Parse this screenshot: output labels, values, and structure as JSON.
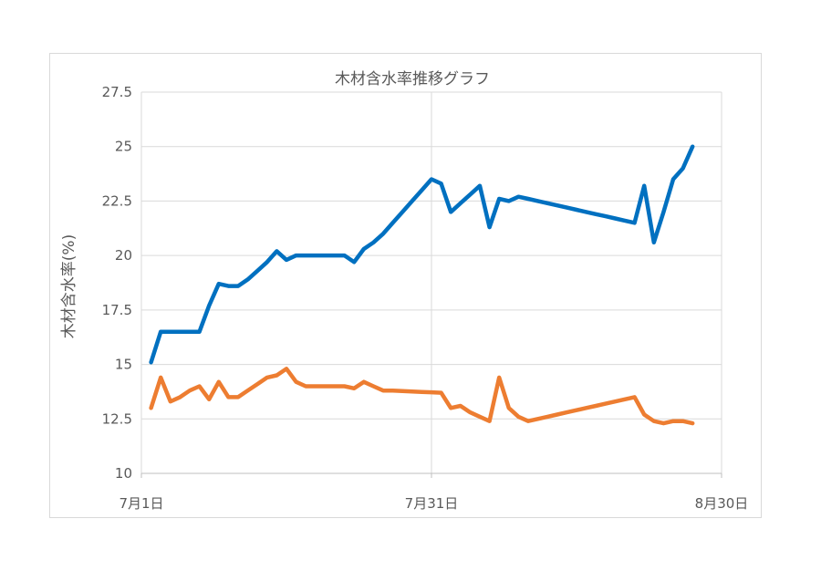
{
  "chart_data": {
    "type": "line",
    "title": "木材含水率推移グラフ",
    "xlabel": "",
    "ylabel": "木材含水率(%)",
    "ylim": [
      10,
      27.5
    ],
    "yticks": [
      10,
      12.5,
      15,
      17.5,
      20,
      22.5,
      25,
      27.5
    ],
    "ytick_labels": [
      "10",
      "12.5",
      "15",
      "17.5",
      "20",
      "22.5",
      "25",
      "27.5"
    ],
    "xlim": [
      0,
      60
    ],
    "xticks": [
      0,
      30,
      60
    ],
    "xtick_labels": [
      "7月1日",
      "7月31日",
      "8月30日"
    ],
    "grid": true,
    "legend": "none",
    "series": [
      {
        "color": "#0070C0",
        "x": [
          1,
          2,
          3,
          4,
          5,
          6,
          7,
          8,
          9,
          10,
          11,
          12,
          13,
          14,
          15,
          16,
          17,
          18,
          19,
          20,
          21,
          22,
          23,
          24,
          25,
          26,
          27,
          28,
          29,
          30,
          31,
          32,
          33,
          34,
          35,
          36,
          37,
          38,
          39,
          40,
          41,
          42,
          43,
          44,
          45,
          46,
          47,
          48,
          49,
          50,
          51,
          52,
          53,
          54,
          55,
          56,
          57
        ],
        "values": [
          15.1,
          16.5,
          16.5,
          16.5,
          16.5,
          16.5,
          17.7,
          18.7,
          18.6,
          18.6,
          18.9,
          19.3,
          19.7,
          20.2,
          19.8,
          20.0,
          20.0,
          20.0,
          20.0,
          20.0,
          20.0,
          19.7,
          20.3,
          20.6,
          21.0,
          21.5,
          22.0,
          22.5,
          23.0,
          23.5,
          23.3,
          22.0,
          22.4,
          22.8,
          23.2,
          21.3,
          22.6,
          22.5,
          22.7,
          22.6,
          22.5,
          22.4,
          22.3,
          22.2,
          22.1,
          22.0,
          21.9,
          21.8,
          21.7,
          21.6,
          21.5,
          23.2,
          20.6,
          22.0,
          23.5,
          24.0,
          25.0
        ]
      },
      {
        "color": "#ED7D31",
        "x": [
          1,
          2,
          3,
          4,
          5,
          6,
          7,
          8,
          9,
          10,
          11,
          12,
          13,
          14,
          15,
          16,
          17,
          18,
          19,
          20,
          21,
          22,
          23,
          24,
          25,
          26,
          27,
          28,
          29,
          30,
          31,
          32,
          33,
          34,
          35,
          36,
          37,
          38,
          39,
          40,
          41,
          42,
          43,
          44,
          45,
          46,
          47,
          48,
          49,
          50,
          51,
          52,
          53,
          54,
          55,
          56,
          57
        ],
        "values": [
          13.0,
          14.4,
          13.3,
          13.5,
          13.8,
          14.0,
          13.4,
          14.2,
          13.5,
          13.5,
          13.8,
          14.1,
          14.4,
          14.5,
          14.8,
          14.2,
          14.0,
          14.0,
          14.0,
          14.0,
          14.0,
          13.9,
          14.2,
          14.0,
          13.8,
          13.8,
          13.78,
          13.76,
          13.74,
          13.72,
          13.7,
          13.0,
          13.1,
          12.8,
          12.6,
          12.4,
          14.4,
          13.0,
          12.6,
          12.4,
          12.5,
          12.6,
          12.7,
          12.8,
          12.9,
          13.0,
          13.1,
          13.2,
          13.3,
          13.4,
          13.5,
          12.7,
          12.4,
          12.3,
          12.4,
          12.4,
          12.3
        ]
      }
    ]
  }
}
